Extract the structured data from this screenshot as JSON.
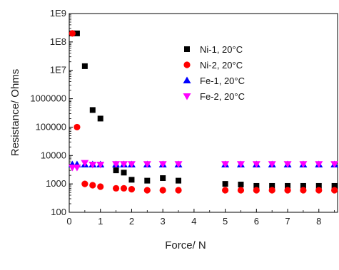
{
  "chart_data": {
    "type": "scatter",
    "title": "",
    "xlabel": "Force/ N",
    "ylabel": "Resistance/ Ohms",
    "xlim": [
      0,
      8.6
    ],
    "ylim": [
      100,
      1000000000
    ],
    "y_scale": "log",
    "grid": false,
    "legend_position": "top-right",
    "x_ticks": [
      {
        "value": 0,
        "label": "0"
      },
      {
        "value": 1,
        "label": "1"
      },
      {
        "value": 2,
        "label": "2"
      },
      {
        "value": 3,
        "label": "3"
      },
      {
        "value": 4,
        "label": "4"
      },
      {
        "value": 5,
        "label": "5"
      },
      {
        "value": 6,
        "label": "6"
      },
      {
        "value": 7,
        "label": "7"
      },
      {
        "value": 8,
        "label": "8"
      }
    ],
    "y_ticks": [
      {
        "value": 100,
        "label": "100"
      },
      {
        "value": 1000,
        "label": "1000"
      },
      {
        "value": 10000,
        "label": "10000"
      },
      {
        "value": 100000,
        "label": "100000"
      },
      {
        "value": 1000000,
        "label": "1000000"
      },
      {
        "value": 10000000,
        "label": "1E7"
      },
      {
        "value": 100000000,
        "label": "1E8"
      },
      {
        "value": 1000000000,
        "label": "1E9"
      }
    ],
    "series": [
      {
        "name": "Ni-1, 20°C",
        "marker": "square",
        "color": "#000000",
        "x": [
          0.1,
          0.25,
          0.5,
          0.75,
          1.0,
          1.5,
          1.75,
          2.0,
          2.5,
          3.0,
          3.5,
          5.0,
          5.5,
          6.0,
          6.5,
          7.0,
          7.5,
          8.0,
          8.5
        ],
        "y": [
          200000000,
          200000000,
          14000000,
          400000,
          200000,
          3000,
          2500,
          1400,
          1300,
          1600,
          1300,
          1000,
          950,
          850,
          850,
          850,
          850,
          850,
          850
        ]
      },
      {
        "name": "Ni-2, 20°C",
        "marker": "circle",
        "color": "#ff0000",
        "x": [
          0.1,
          0.25,
          0.5,
          0.75,
          1.0,
          1.5,
          1.75,
          2.0,
          2.5,
          3.0,
          3.5,
          5.0,
          5.5,
          6.0,
          6.5,
          7.0,
          7.5,
          8.0,
          8.5
        ],
        "y": [
          200000000,
          100000,
          1000,
          900,
          800,
          700,
          700,
          650,
          600,
          600,
          600,
          600,
          600,
          600,
          600,
          600,
          600,
          600,
          600
        ]
      },
      {
        "name": "Fe-1, 20°C",
        "marker": "triangle-up",
        "color": "#0000ff",
        "x": [
          0.1,
          0.25,
          0.5,
          0.75,
          1.0,
          1.5,
          1.75,
          2.0,
          2.5,
          3.0,
          3.5,
          5.0,
          5.5,
          6.0,
          6.5,
          7.0,
          7.5,
          8.0,
          8.5
        ],
        "y": [
          4800,
          4800,
          4800,
          4800,
          4800,
          4800,
          4800,
          4800,
          4800,
          4800,
          4800,
          4800,
          4800,
          4800,
          4800,
          4800,
          4800,
          4800,
          4800
        ]
      },
      {
        "name": "Fe-2, 20°C",
        "marker": "triangle-down",
        "color": "#ff00ff",
        "x": [
          0.1,
          0.25,
          0.5,
          0.75,
          1.0,
          1.5,
          1.75,
          2.0,
          2.5,
          3.0,
          3.5,
          5.0,
          5.5,
          6.0,
          6.5,
          7.0,
          7.5,
          8.0,
          8.5
        ],
        "y": [
          3800,
          3800,
          5500,
          4800,
          4800,
          5000,
          5000,
          5000,
          5000,
          5000,
          5000,
          5000,
          5000,
          5000,
          5000,
          5000,
          5000,
          5000,
          5000
        ]
      }
    ]
  }
}
